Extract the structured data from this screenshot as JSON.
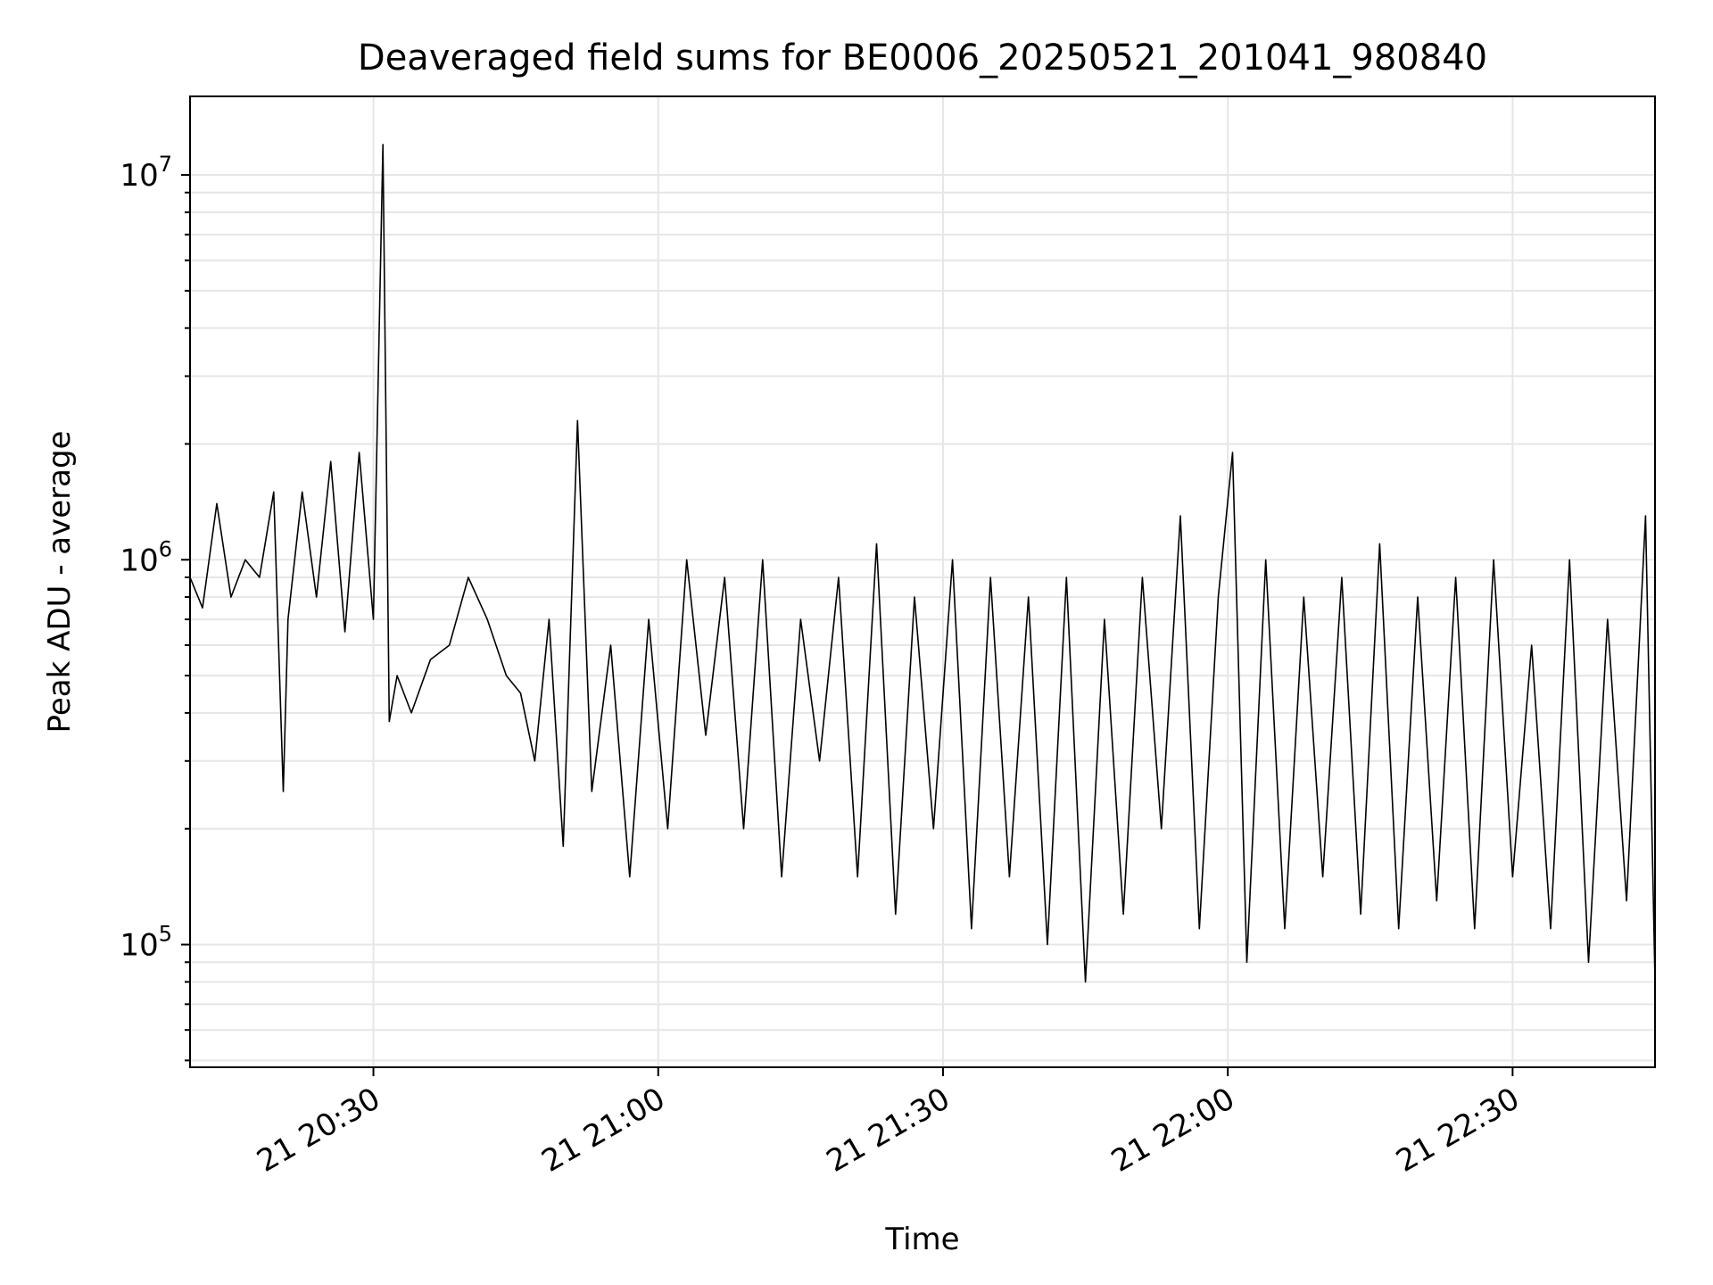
{
  "chart_data": {
    "type": "line",
    "title": "Deaveraged field sums for BE0006_20250521_201041_980840",
    "xlabel": "Time",
    "ylabel": "Peak ADU - average",
    "yscale": "log",
    "ylim": [
      48000,
      16000000
    ],
    "xlim": [
      "2025-05-21 20:10:41",
      "2025-05-21 22:45:00"
    ],
    "grid": true,
    "line_color": "#000000",
    "x_ticks": [
      {
        "value": "2025-05-21 20:30:00",
        "label": "21 20:30"
      },
      {
        "value": "2025-05-21 21:00:00",
        "label": "21 21:00"
      },
      {
        "value": "2025-05-21 21:30:00",
        "label": "21 21:30"
      },
      {
        "value": "2025-05-21 22:00:00",
        "label": "21 22:00"
      },
      {
        "value": "2025-05-21 22:30:00",
        "label": "21 22:30"
      }
    ],
    "y_ticks": [
      {
        "value": 100000,
        "base": "10",
        "exp": "5"
      },
      {
        "value": 1000000,
        "base": "10",
        "exp": "6"
      },
      {
        "value": 10000000,
        "base": "10",
        "exp": "7"
      }
    ],
    "series": [
      {
        "x": [
          "2025-05-21 20:10:41",
          "2025-05-21 20:12:00",
          "2025-05-21 20:13:30",
          "2025-05-21 20:15:00",
          "2025-05-21 20:16:30",
          "2025-05-21 20:18:00",
          "2025-05-21 20:19:30",
          "2025-05-21 20:20:30",
          "2025-05-21 20:21:00",
          "2025-05-21 20:22:30",
          "2025-05-21 20:24:00",
          "2025-05-21 20:25:30",
          "2025-05-21 20:27:00",
          "2025-05-21 20:28:30",
          "2025-05-21 20:30:00",
          "2025-05-21 20:31:00",
          "2025-05-21 20:31:40",
          "2025-05-21 20:32:30",
          "2025-05-21 20:34:00",
          "2025-05-21 20:36:00",
          "2025-05-21 20:38:00",
          "2025-05-21 20:40:00",
          "2025-05-21 20:42:00",
          "2025-05-21 20:44:00",
          "2025-05-21 20:45:30",
          "2025-05-21 20:47:00",
          "2025-05-21 20:48:30",
          "2025-05-21 20:50:00",
          "2025-05-21 20:51:30",
          "2025-05-21 20:53:00",
          "2025-05-21 20:55:00",
          "2025-05-21 20:57:00",
          "2025-05-21 20:59:00",
          "2025-05-21 21:01:00",
          "2025-05-21 21:03:00",
          "2025-05-21 21:05:00",
          "2025-05-21 21:07:00",
          "2025-05-21 21:09:00",
          "2025-05-21 21:11:00",
          "2025-05-21 21:13:00",
          "2025-05-21 21:15:00",
          "2025-05-21 21:17:00",
          "2025-05-21 21:19:00",
          "2025-05-21 21:21:00",
          "2025-05-21 21:23:00",
          "2025-05-21 21:25:00",
          "2025-05-21 21:27:00",
          "2025-05-21 21:29:00",
          "2025-05-21 21:31:00",
          "2025-05-21 21:33:00",
          "2025-05-21 21:35:00",
          "2025-05-21 21:37:00",
          "2025-05-21 21:39:00",
          "2025-05-21 21:41:00",
          "2025-05-21 21:43:00",
          "2025-05-21 21:45:00",
          "2025-05-21 21:47:00",
          "2025-05-21 21:49:00",
          "2025-05-21 21:51:00",
          "2025-05-21 21:53:00",
          "2025-05-21 21:55:00",
          "2025-05-21 21:57:00",
          "2025-05-21 21:59:00",
          "2025-05-21 22:00:30",
          "2025-05-21 22:02:00",
          "2025-05-21 22:04:00",
          "2025-05-21 22:06:00",
          "2025-05-21 22:08:00",
          "2025-05-21 22:10:00",
          "2025-05-21 22:12:00",
          "2025-05-21 22:14:00",
          "2025-05-21 22:16:00",
          "2025-05-21 22:18:00",
          "2025-05-21 22:20:00",
          "2025-05-21 22:22:00",
          "2025-05-21 22:24:00",
          "2025-05-21 22:26:00",
          "2025-05-21 22:28:00",
          "2025-05-21 22:30:00",
          "2025-05-21 22:32:00",
          "2025-05-21 22:34:00",
          "2025-05-21 22:36:00",
          "2025-05-21 22:38:00",
          "2025-05-21 22:40:00",
          "2025-05-21 22:42:00",
          "2025-05-21 22:44:00",
          "2025-05-21 22:45:00"
        ],
        "y": [
          900000,
          750000,
          1400000,
          800000,
          1000000,
          900000,
          1500000,
          250000,
          700000,
          1500000,
          800000,
          1800000,
          650000,
          1900000,
          700000,
          12000000,
          380000,
          500000,
          400000,
          550000,
          600000,
          900000,
          700000,
          500000,
          450000,
          300000,
          700000,
          180000,
          2300000,
          250000,
          600000,
          150000,
          700000,
          200000,
          1000000,
          350000,
          900000,
          200000,
          1000000,
          150000,
          700000,
          300000,
          900000,
          150000,
          1100000,
          120000,
          800000,
          200000,
          1000000,
          110000,
          900000,
          150000,
          800000,
          100000,
          900000,
          80000,
          700000,
          120000,
          900000,
          200000,
          1300000,
          110000,
          800000,
          1900000,
          90000,
          1000000,
          110000,
          800000,
          150000,
          900000,
          120000,
          1100000,
          110000,
          800000,
          130000,
          900000,
          110000,
          1000000,
          150000,
          600000,
          110000,
          1000000,
          90000,
          700000,
          130000,
          1300000,
          80000
        ],
        "note": ""
      }
    ]
  }
}
